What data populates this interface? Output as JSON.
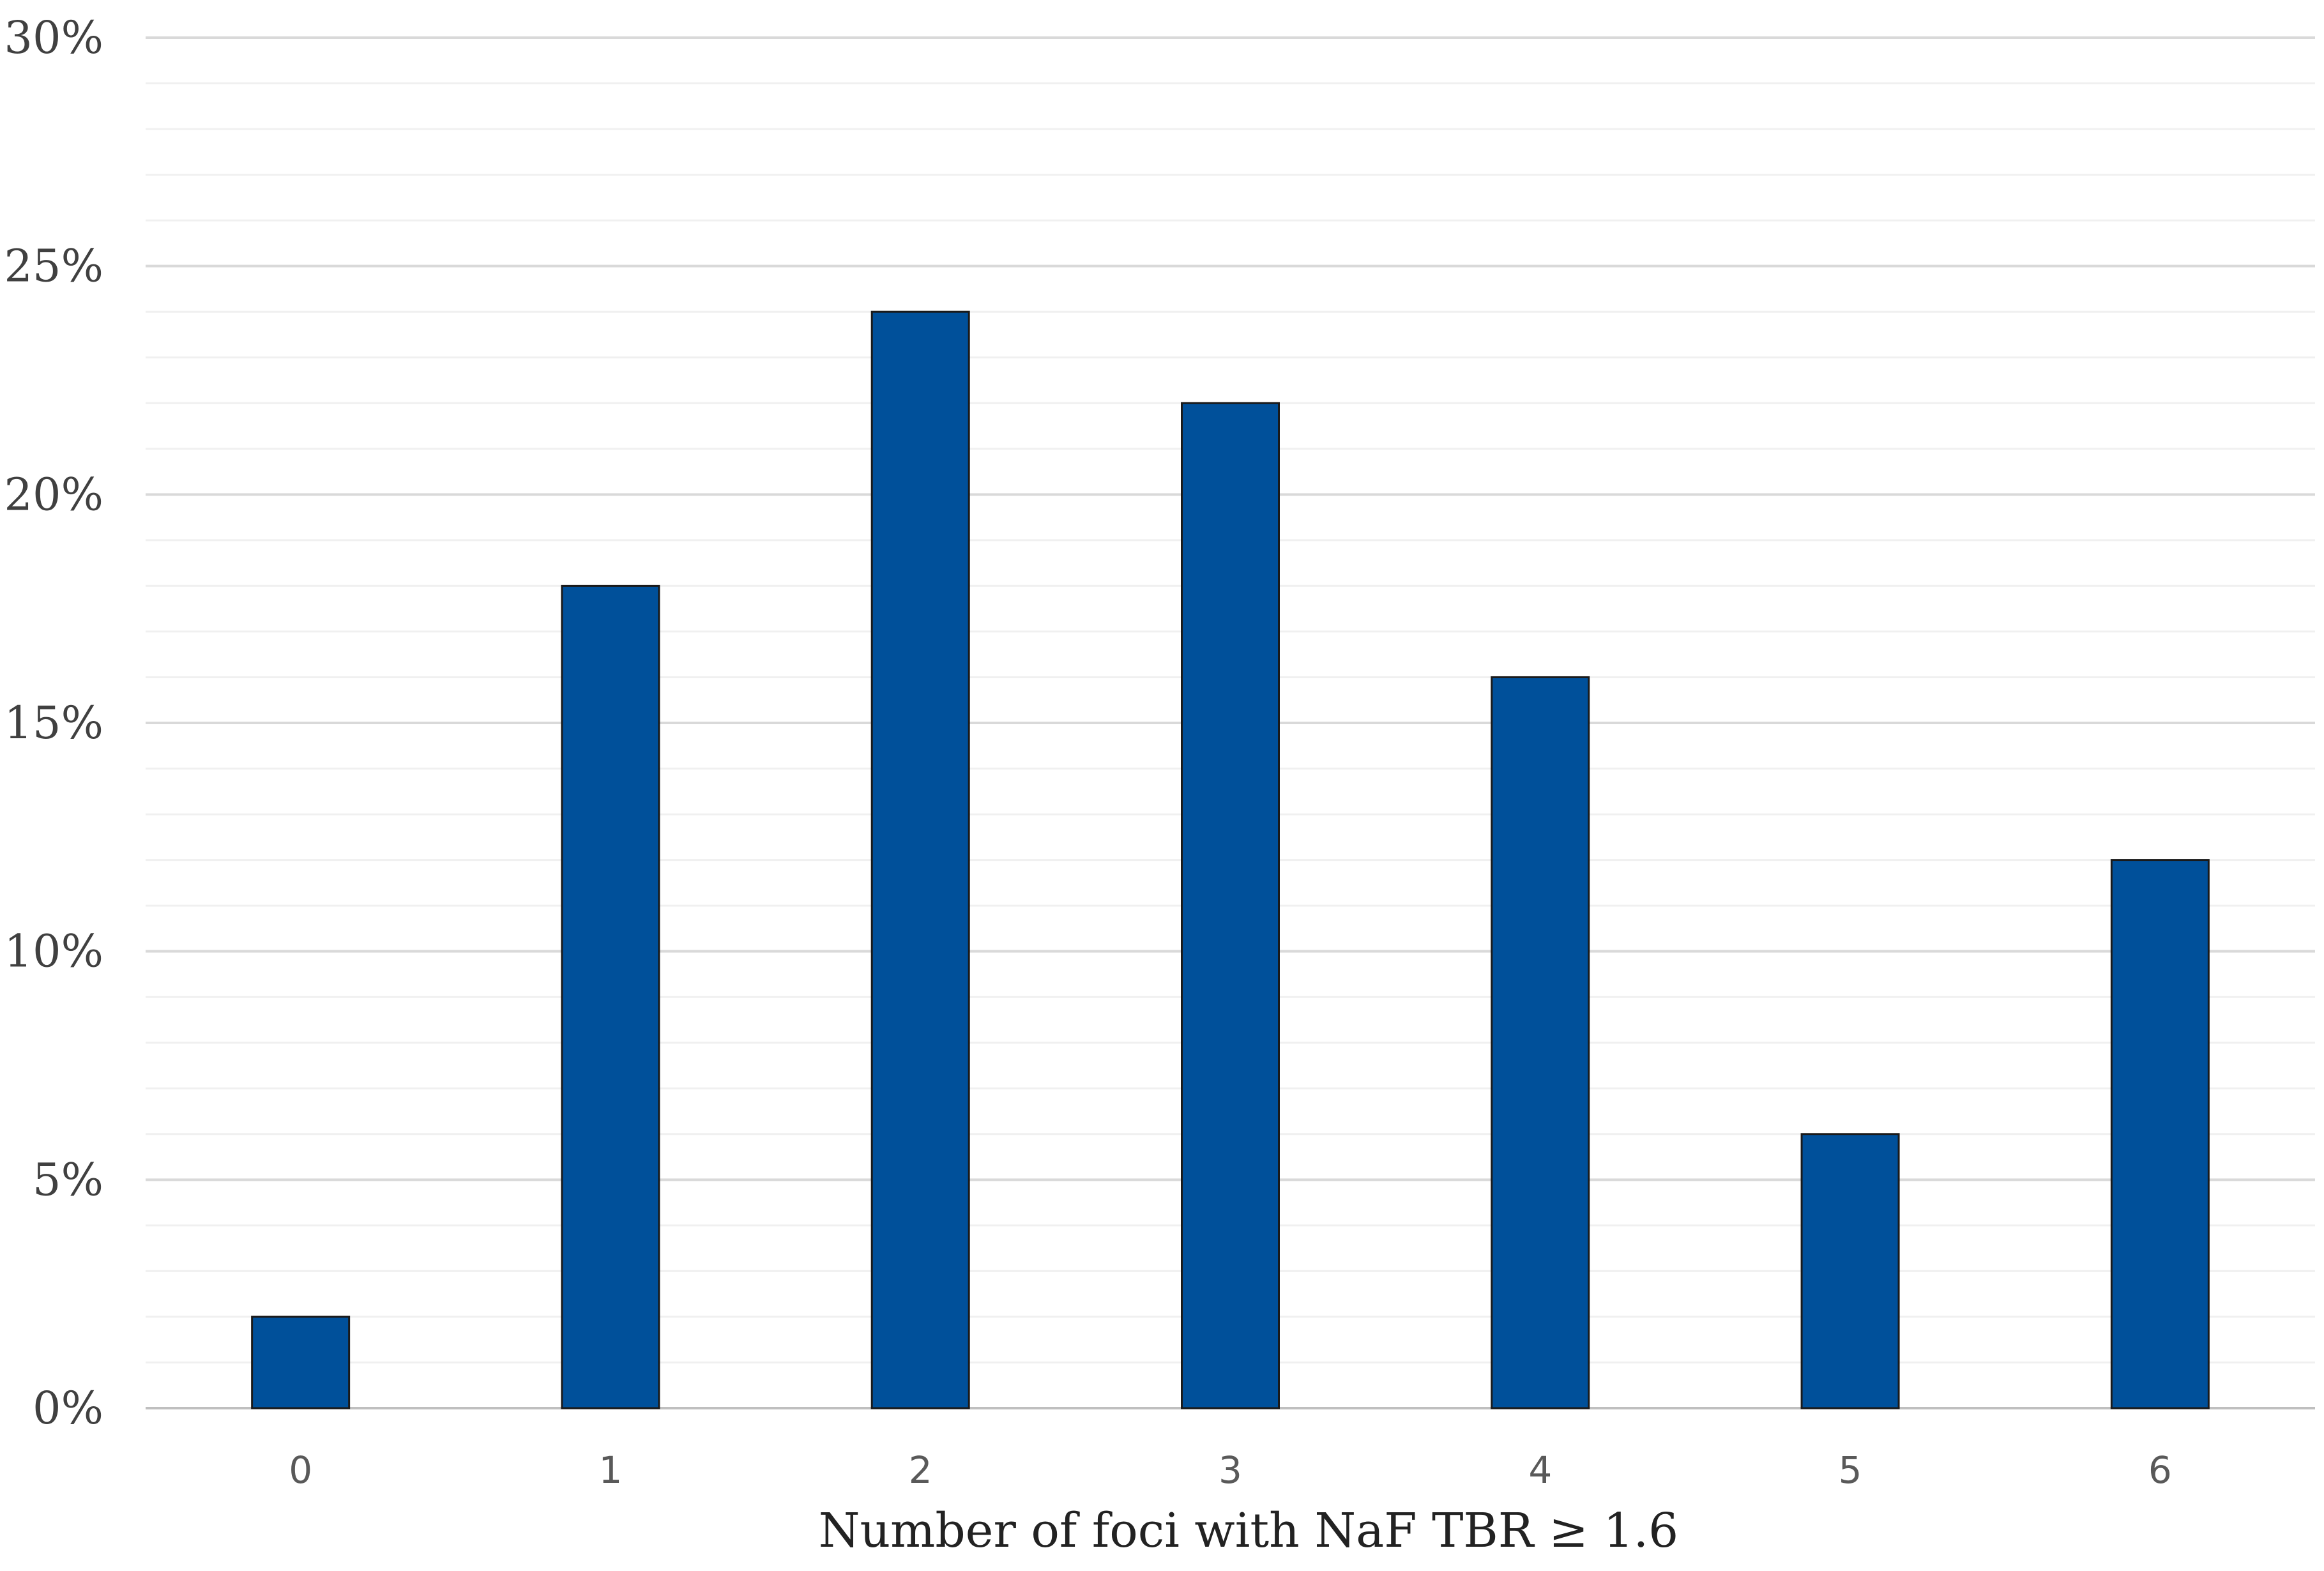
{
  "chart_data": {
    "type": "bar",
    "categories": [
      "0",
      "1",
      "2",
      "3",
      "4",
      "5",
      "6"
    ],
    "values": [
      2,
      18,
      24,
      22,
      16,
      6,
      12
    ],
    "xlabel": "Number of foci with NaF TBR ≥ 1.6",
    "ylabel": "",
    "ylim": [
      0,
      30
    ],
    "yticks": [
      "0%",
      "5%",
      "10%",
      "15%",
      "20%",
      "25%",
      "30%"
    ],
    "grid": true,
    "colors": {
      "bar": "#00509A",
      "grid_major": "#d9d9d9",
      "grid_minor": "#f0f0f0"
    }
  }
}
